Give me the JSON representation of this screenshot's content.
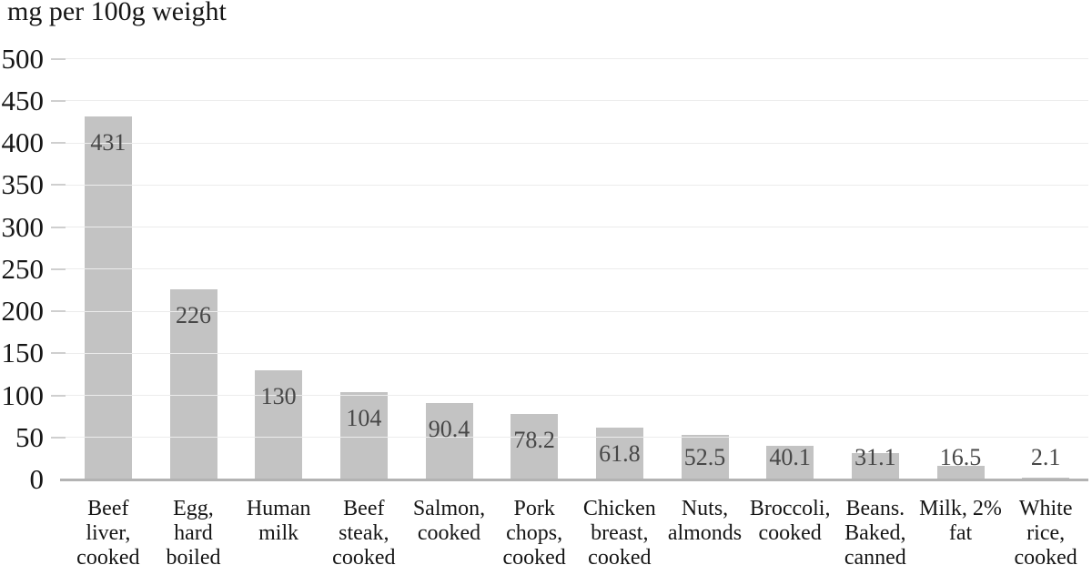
{
  "chart_data": {
    "type": "bar",
    "title": "mg per 100g weight",
    "xlabel": "",
    "ylabel": "mg per 100g weight",
    "categories": [
      "Beef liver, cooked",
      "Egg, hard boiled",
      "Human milk",
      "Beef steak, cooked",
      "Salmon, cooked",
      "Pork chops, cooked",
      "Chicken breast, cooked",
      "Nuts, almonds",
      "Broccoli, cooked",
      "Beans. Baked, canned",
      "Milk, 2% fat",
      "White rice, cooked"
    ],
    "category_lines": [
      [
        "Beef",
        "liver,",
        "cooked"
      ],
      [
        "Egg,",
        "hard",
        "boiled"
      ],
      [
        "Human",
        "milk"
      ],
      [
        "Beef",
        "steak,",
        "cooked"
      ],
      [
        "Salmon,",
        "cooked"
      ],
      [
        "Pork",
        "chops,",
        "cooked"
      ],
      [
        "Chicken",
        "breast,",
        "cooked"
      ],
      [
        "Nuts,",
        "almonds"
      ],
      [
        "Broccoli,",
        "cooked"
      ],
      [
        "Beans.",
        "Baked,",
        "canned"
      ],
      [
        "Milk, 2%",
        "fat"
      ],
      [
        "White",
        "rice,",
        "cooked"
      ]
    ],
    "values": [
      431,
      226,
      130,
      104,
      90.4,
      78.2,
      61.8,
      52.5,
      40.1,
      31.1,
      16.5,
      2.1
    ],
    "value_labels": [
      "431",
      "226",
      "130",
      "104",
      "90.4",
      "78.2",
      "61.8",
      "52.5",
      "40.1",
      "31.1",
      "16.5",
      "2.1"
    ],
    "ylim": [
      0,
      500
    ],
    "yticks": [
      0,
      50,
      100,
      150,
      200,
      250,
      300,
      350,
      400,
      450,
      500
    ],
    "grid": true,
    "legend": "none",
    "colors": {
      "bar": "#c3c3c3",
      "gridline": "#ececec",
      "tick": "#cfcfcf",
      "axis_line": "#b3b3b3",
      "title_text": "#161616",
      "axis_text": "#161616",
      "value_text": "#474747",
      "background": "#ffffff"
    }
  }
}
